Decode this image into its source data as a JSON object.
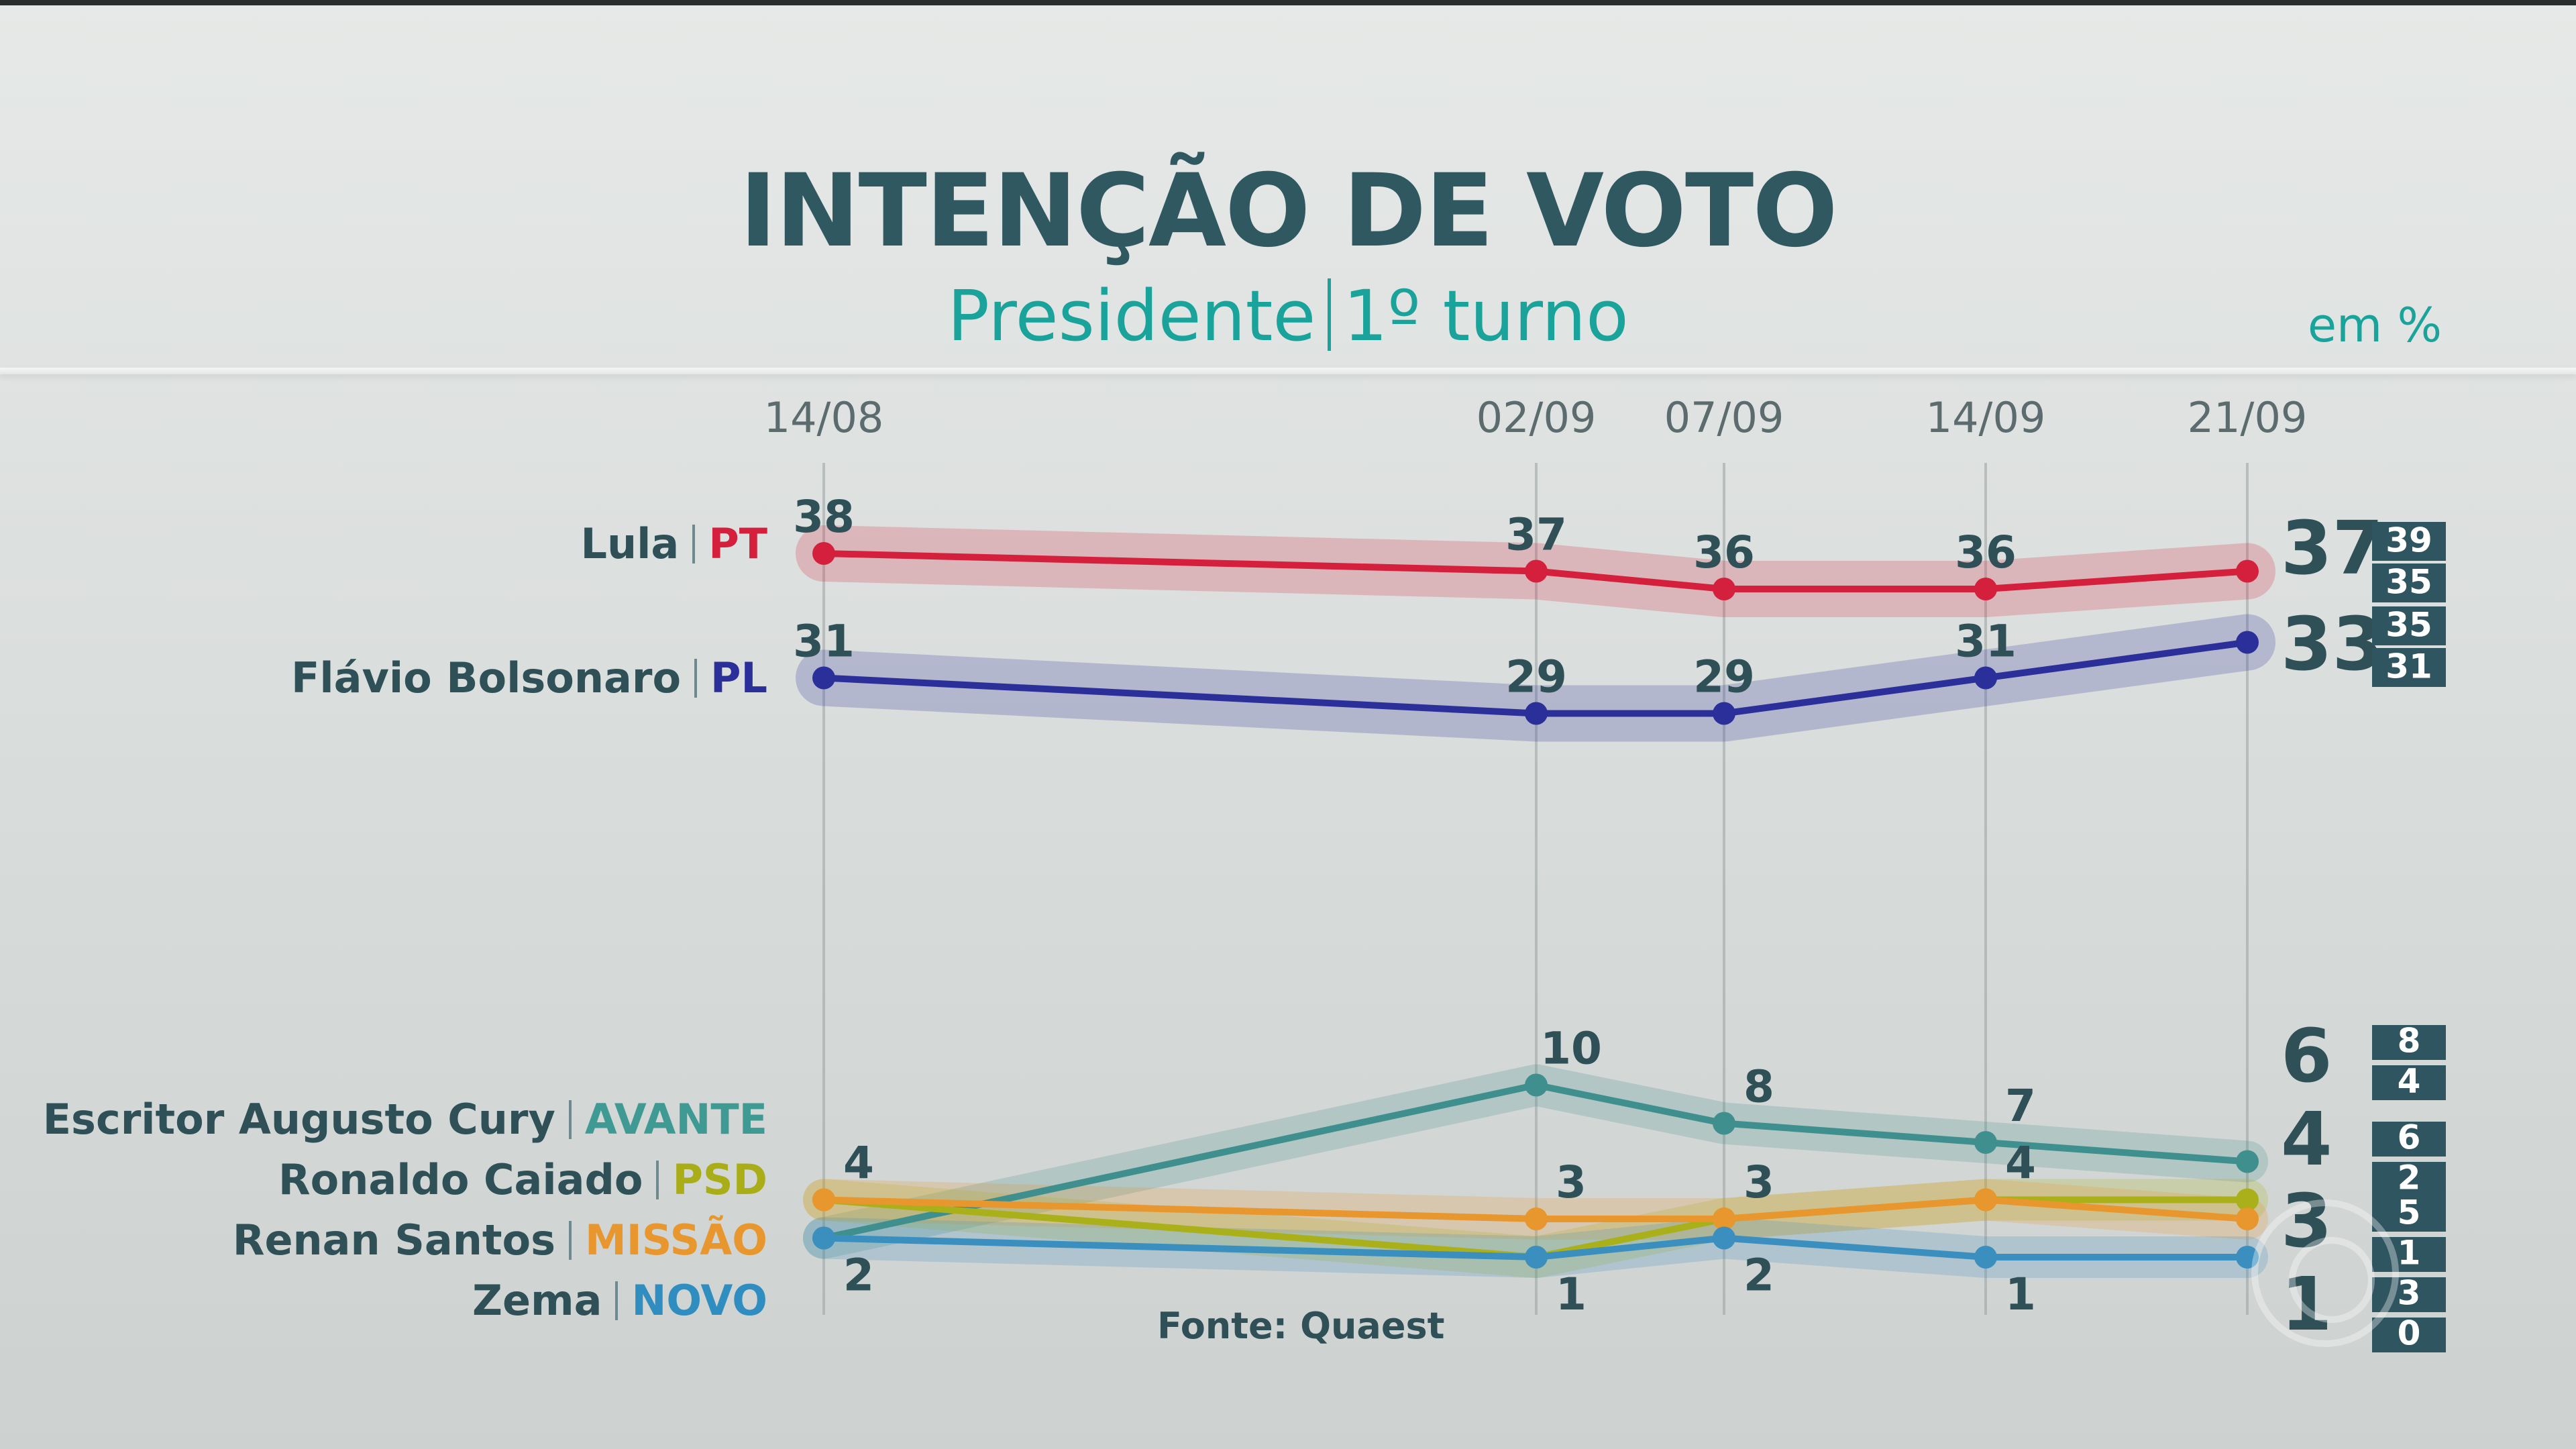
{
  "header": {
    "title": "INTENÇÃO DE VOTO",
    "subtitle_left": "Presidente",
    "subtitle_right": "1º turno",
    "unit": "em %"
  },
  "source": "Fonte: Quaest",
  "candidates": [
    {
      "name": "Lula",
      "party": "PT",
      "party_color": "#d4203c"
    },
    {
      "name": "Flávio Bolsonaro",
      "party": "PL",
      "party_color": "#2a2f9a"
    },
    {
      "name": "Escritor Augusto Cury",
      "party": "AVANTE",
      "party_color": "#3f9a93"
    },
    {
      "name": "Ronaldo Caiado",
      "party": "PSD",
      "party_color": "#a9ad17"
    },
    {
      "name": "Renan Santos",
      "party": "MISSÃO",
      "party_color": "#e8962e"
    },
    {
      "name": "Zema",
      "party": "NOVO",
      "party_color": "#2f8ebf"
    }
  ],
  "chart_data": {
    "type": "line",
    "x": [
      "14/08",
      "02/09",
      "07/09",
      "14/09",
      "21/09"
    ],
    "series": [
      {
        "name": "Lula",
        "color": "#d4203c",
        "values": [
          38,
          37,
          36,
          36,
          37
        ],
        "range": [
          39,
          35
        ]
      },
      {
        "name": "Flávio Bolsonaro",
        "color": "#2a2f9a",
        "values": [
          31,
          29,
          29,
          31,
          33
        ],
        "range": [
          35,
          31
        ]
      },
      {
        "name": "Escritor Augusto Cury",
        "color": "#3f8f8e",
        "values": [
          2,
          10,
          8,
          7,
          6
        ],
        "range": [
          8,
          4
        ]
      },
      {
        "name": "Ronaldo Caiado",
        "color": "#aab01a",
        "values": [
          4,
          1,
          3,
          4,
          4
        ],
        "range": [
          6,
          2
        ]
      },
      {
        "name": "Renan Santos",
        "color": "#e8962e",
        "values": [
          4,
          3,
          3,
          4,
          3
        ],
        "range": [
          5,
          1
        ]
      },
      {
        "name": "Zema",
        "color": "#3a8fbf",
        "values": [
          2,
          1,
          2,
          1,
          1
        ],
        "range": [
          3,
          0
        ]
      }
    ],
    "end_labels": [
      "37",
      "33",
      "6",
      "4",
      "3",
      "1"
    ]
  }
}
